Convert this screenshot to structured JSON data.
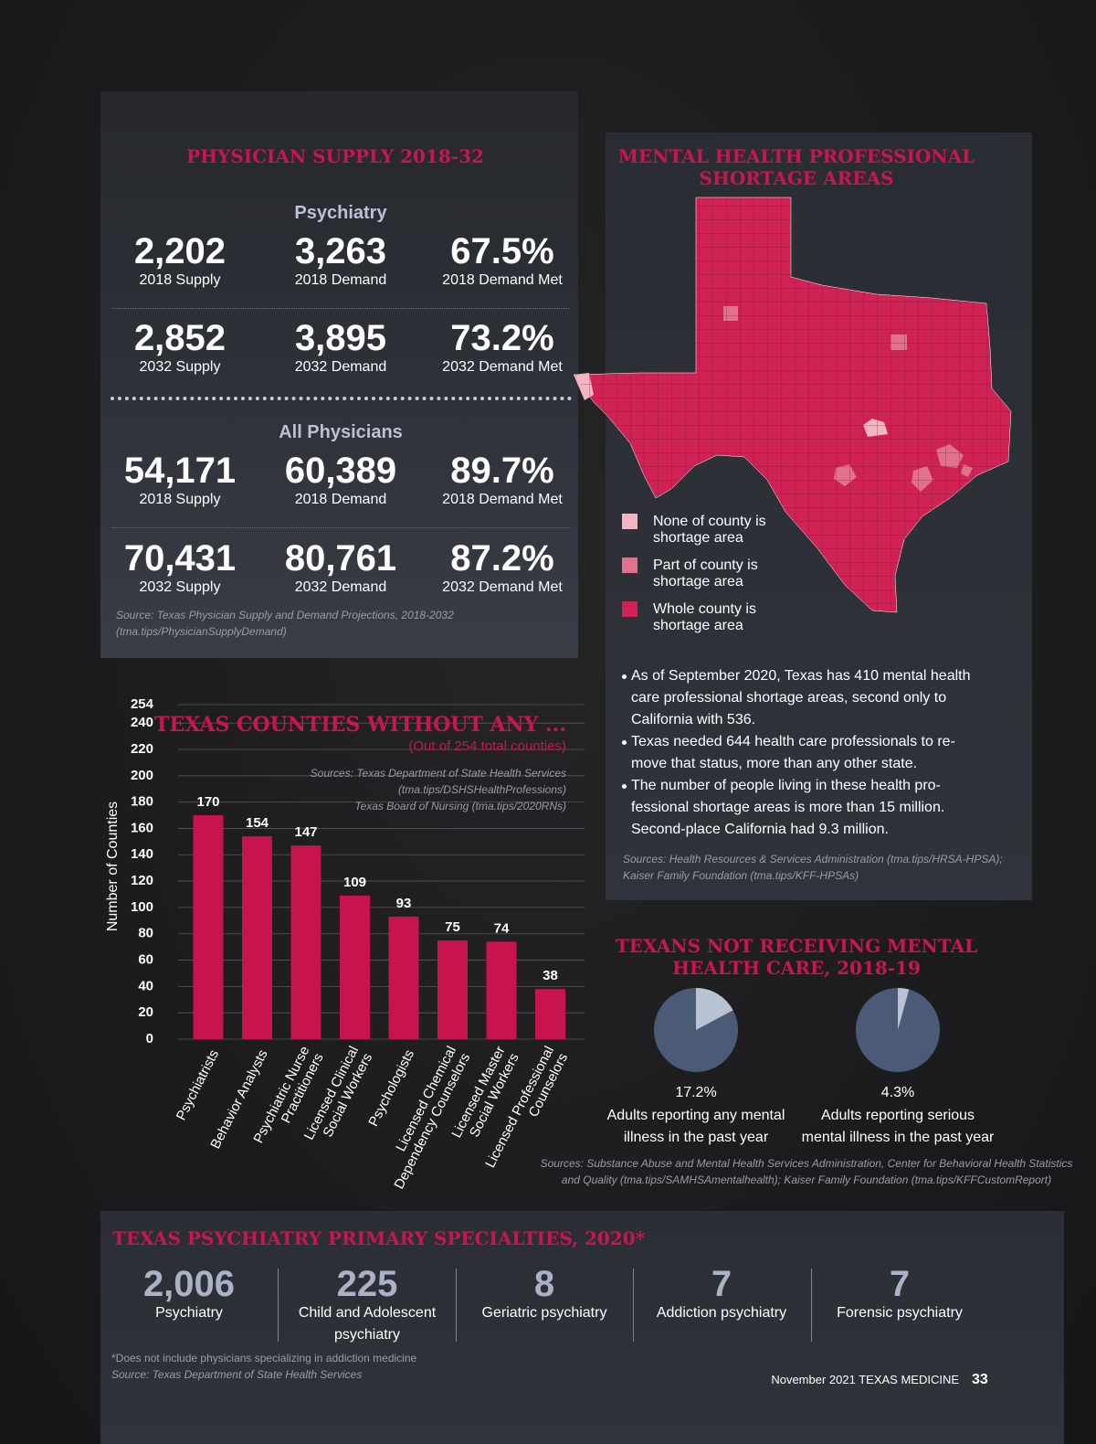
{
  "physician_supply": {
    "title": "PHYSICIAN SUPPLY 2018-32",
    "groups": [
      {
        "heading": "Psychiatry",
        "rows": [
          [
            {
              "value": "2,202",
              "label": "2018 Supply"
            },
            {
              "value": "3,263",
              "label": "2018 Demand"
            },
            {
              "value": "67.5%",
              "label": "2018 Demand Met"
            }
          ],
          [
            {
              "value": "2,852",
              "label": "2032 Supply"
            },
            {
              "value": "3,895",
              "label": "2032 Demand"
            },
            {
              "value": "73.2%",
              "label": "2032 Demand Met"
            }
          ]
        ]
      },
      {
        "heading": "All Physicians",
        "rows": [
          [
            {
              "value": "54,171",
              "label": "2018 Supply"
            },
            {
              "value": "60,389",
              "label": "2018 Demand"
            },
            {
              "value": "89.7%",
              "label": "2018 Demand Met"
            }
          ],
          [
            {
              "value": "70,431",
              "label": "2032 Supply"
            },
            {
              "value": "80,761",
              "label": "2032 Demand"
            },
            {
              "value": "87.2%",
              "label": "2032 Demand Met"
            }
          ]
        ]
      }
    ],
    "source": [
      "Source: Texas Physician Supply and Demand Projections, 2018-2032",
      "(tma.tips/PhysicianSupplyDemand)"
    ]
  },
  "shortage_map": {
    "title": [
      "MENTAL HEALTH PROFESSIONAL",
      "SHORTAGE AREAS"
    ],
    "legend": [
      {
        "label": [
          "None of county is",
          "shortage area"
        ],
        "color": "#f2b6c3"
      },
      {
        "label": [
          "Part of county is",
          "shortage area"
        ],
        "color": "#e0728c"
      },
      {
        "label": [
          "Whole county is",
          "shortage area"
        ],
        "color": "#cf2355"
      }
    ],
    "bullets": [
      [
        "As of September 2020, Texas has 410 mental health",
        "care professional shortage areas, second only to",
        "California with 536."
      ],
      [
        "Texas needed 644 health care professionals to re-",
        "move that status, more than any other state."
      ],
      [
        "The number of people living in these health pro-",
        "fessional shortage areas is more than 15 million.",
        "Second-place California had 9.3 million."
      ]
    ],
    "source": [
      "Sources: Health Resources & Services Administration (tma.tips/HRSA-HPSA);",
      "Kaiser Family Foundation (tma.tips/KFF-HPSAs)"
    ]
  },
  "chart_data": [
    {
      "type": "bar",
      "title": "TEXAS COUNTIES WITHOUT ANY ...",
      "subtitle": "(Out of 254 total counties)",
      "sources": [
        "Sources: Texas Department of State Health Services",
        "(tma.tips/DSHSHealthProfessions)",
        "Texas Board of Nursing (tma.tips/2020RNs)"
      ],
      "y_label": "Number of Counties",
      "categories": [
        [
          "Psychiatrists"
        ],
        [
          "Behavior Analysts"
        ],
        [
          "Psychiatric Nurse",
          "Practitioners"
        ],
        [
          "Licensed Clinical",
          "Social Workers"
        ],
        [
          "Psychologists"
        ],
        [
          "Licensed Chemical",
          "Dependency Counselors"
        ],
        [
          "Licensed Master",
          "Social Workers"
        ],
        [
          "Licensed Professional",
          "Counselors"
        ]
      ],
      "values": [
        170,
        154,
        147,
        109,
        93,
        75,
        74,
        38
      ],
      "color": "#c8144c",
      "ylim": [
        0,
        254
      ],
      "yticks": [
        0,
        20,
        40,
        60,
        80,
        100,
        120,
        140,
        160,
        180,
        200,
        220,
        240,
        254
      ],
      "grid": true
    },
    {
      "type": "pie",
      "values": [
        17.2
      ],
      "value_labels": [
        "17.2%"
      ],
      "caption": [
        "Adults reporting any mental",
        "illness in the past year"
      ],
      "colors": [
        "#b9c3d3",
        "#4b5b76"
      ]
    },
    {
      "type": "pie",
      "values": [
        4.3
      ],
      "value_labels": [
        "4.3%"
      ],
      "caption": [
        "Adults reporting serious",
        "mental illness in the past year"
      ],
      "colors": [
        "#b9c3d3",
        "#4b5b76"
      ]
    }
  ],
  "mental_health_care": {
    "title": [
      "TEXANS NOT RECEIVING MENTAL",
      "HEALTH CARE, 2018-19"
    ],
    "source": [
      "Sources: Substance Abuse and Mental Health Services Administration, Center for Behavioral Health Statistics",
      "and Quality (tma.tips/SAMHSAmentalhealth); Kaiser Family Foundation (tma.tips/KFFCustomReport)"
    ]
  },
  "specialties": {
    "title": "TEXAS PSYCHIATRY PRIMARY SPECIALTIES, 2020*",
    "items": [
      {
        "value": "2,006",
        "label": [
          "Psychiatry"
        ]
      },
      {
        "value": "225",
        "label": [
          "Child and Adolescent",
          "psychiatry"
        ]
      },
      {
        "value": "8",
        "label": [
          "Geriatric psychiatry"
        ]
      },
      {
        "value": "7",
        "label": [
          "Addiction psychiatry"
        ]
      },
      {
        "value": "7",
        "label": [
          "Forensic psychiatry"
        ]
      }
    ],
    "notes": [
      "*Does not include physicians specializing in addiction medicine",
      "Source: Texas Department of State Health Services"
    ]
  },
  "footer": {
    "issue": "November 2021  TEXAS MEDICINE",
    "page": "33"
  }
}
